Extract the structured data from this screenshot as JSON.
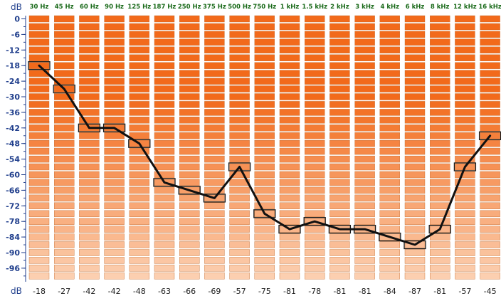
{
  "chart_data": {
    "type": "bar",
    "title": "",
    "ylabel": "dB",
    "xlabel": "dB",
    "categories": [
      "30 Hz",
      "45 Hz",
      "60 Hz",
      "90 Hz",
      "125 Hz",
      "187 Hz",
      "250 Hz",
      "375 Hz",
      "500 Hz",
      "750 Hz",
      "1 kHz",
      "1.5 kHz",
      "2 kHz",
      "3 kHz",
      "4 kHz",
      "6 kHz",
      "8 kHz",
      "12 kHz",
      "16 kHz"
    ],
    "values": [
      -18,
      -27,
      -42,
      -42,
      -48,
      -63,
      -66,
      -69,
      -57,
      -75,
      -81,
      -78,
      -81,
      -81,
      -84,
      -87,
      -81,
      -57,
      -45
    ],
    "value_labels": [
      "-18",
      "-27",
      "-42",
      "-42",
      "-48",
      "-63",
      "-66",
      "-69",
      "-57",
      "-75",
      "-81",
      "-78",
      "-81",
      "-81",
      "-84",
      "-87",
      "-81",
      "-57",
      "-45"
    ],
    "y_ticks": [
      "0",
      "-6",
      "-12",
      "-18",
      "-24",
      "-30",
      "-36",
      "-42",
      "-48",
      "-54",
      "-60",
      "-66",
      "-72",
      "-78",
      "-84",
      "-90",
      "-96"
    ],
    "ylim": [
      -102,
      0
    ],
    "segment_step_db": 3,
    "grid": true,
    "colors": {
      "segment_top": "#f26a1b",
      "segment_bottom": "#fcd3b6",
      "segment_border": "#c26b2d",
      "tick": "#1f3e8c",
      "curve": "#111111",
      "frequency_text": "#1a6a1a"
    }
  }
}
